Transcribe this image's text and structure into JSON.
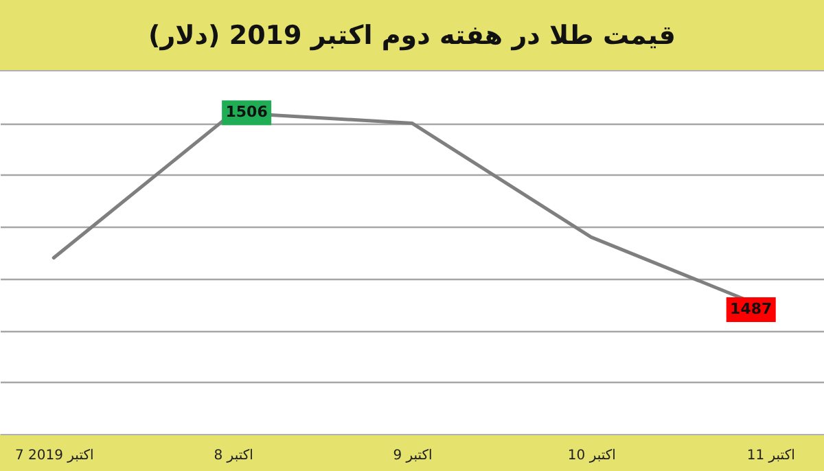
{
  "chart_data": {
    "type": "line",
    "title": "قیمت طلا در هفته دوم اکتبر 2019 (دلار)",
    "categories": [
      "7 اکتبر 2019",
      "8 اکتبر",
      "9 اکتبر",
      "10 اکتبر",
      "11 اکتبر"
    ],
    "series": [
      {
        "color": "#7f7f7f",
        "values": [
          1492,
          1506,
          1505,
          1494,
          1487
        ],
        "value_labels": [
          null,
          "1506",
          null,
          null,
          "1487"
        ]
      }
    ],
    "ylim": [
      1475,
      1510
    ],
    "yticks": [
      {
        "value": 1480,
        "label": null
      },
      {
        "value": 1485,
        "label": null
      },
      {
        "value": 1490,
        "label": null
      },
      {
        "value": 1495,
        "label": null
      },
      {
        "value": 1500,
        "label": null
      },
      {
        "value": 1505,
        "label": null
      }
    ],
    "grid": "y",
    "tick_labels": "x",
    "marker": "none",
    "line_style": "solid"
  }
}
